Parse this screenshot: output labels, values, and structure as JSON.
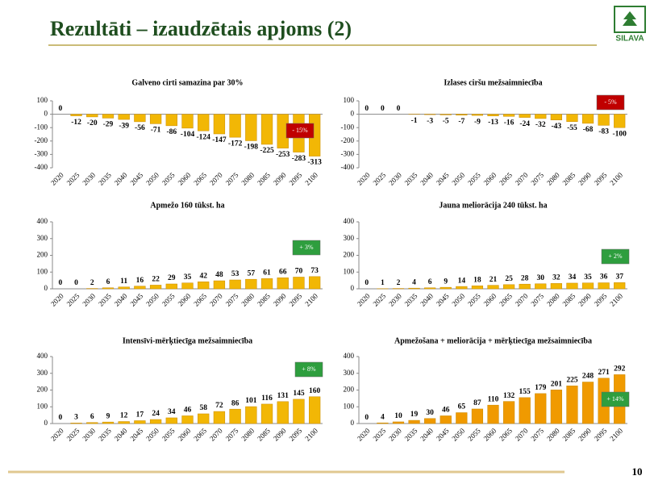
{
  "title": "Rezultāti – izaudzētais apjoms (2)",
  "logo": "SILAVA",
  "page_number": "10",
  "chart_data": [
    {
      "type": "bar",
      "title": "Galveno cirti samazina par 30%",
      "categories": [
        "2020",
        "2025",
        "2030",
        "2035",
        "2040",
        "2045",
        "2050",
        "2055",
        "2060",
        "2065",
        "2070",
        "2075",
        "2080",
        "2085",
        "2090",
        "2095",
        "2100"
      ],
      "values": [
        0,
        -12,
        -20,
        -29,
        -39,
        -56,
        -71,
        -86,
        -104,
        -124,
        -147,
        -172,
        -198,
        -225,
        -253,
        -283,
        -313
      ],
      "color": "#f2b705",
      "ylim": [
        -400,
        100
      ],
      "yticks": [
        -400,
        -300,
        -200,
        -100,
        0,
        100
      ],
      "annotation": "- 15%",
      "annotation_color": "#c00000"
    },
    {
      "type": "bar",
      "title": "Izlases ciršu mežsaimniecība",
      "categories": [
        "2020",
        "2025",
        "2030",
        "2035",
        "2040",
        "2045",
        "2050",
        "2055",
        "2060",
        "2065",
        "2070",
        "2075",
        "2080",
        "2085",
        "2090",
        "2095",
        "2100"
      ],
      "values": [
        0,
        0,
        0,
        -1,
        -3,
        -5,
        -7,
        -9,
        -13,
        -16,
        -24,
        -32,
        -43,
        -55,
        -68,
        -83,
        -100
      ],
      "color": "#f2b705",
      "ylim": [
        -400,
        100
      ],
      "yticks": [
        -400,
        -300,
        -200,
        -100,
        0,
        100
      ],
      "annotation": "- 5%",
      "annotation_color": "#c00000"
    },
    {
      "type": "bar",
      "title": "Apmežo 160 tūkst. ha",
      "categories": [
        "2020",
        "2025",
        "2030",
        "2035",
        "2040",
        "2045",
        "2050",
        "2055",
        "2060",
        "2065",
        "2070",
        "2075",
        "2080",
        "2085",
        "2090",
        "2095",
        "2100"
      ],
      "values": [
        0,
        0,
        2,
        6,
        11,
        16,
        22,
        29,
        35,
        42,
        48,
        53,
        57,
        61,
        66,
        70,
        73
      ],
      "color": "#f2b705",
      "ylim": [
        0,
        400
      ],
      "yticks": [
        0,
        100,
        200,
        300,
        400
      ],
      "annotation": "+ 3%",
      "annotation_color": "#2e9e3e"
    },
    {
      "type": "bar",
      "title": "Jauna meliorācija 240 tūkst. ha",
      "categories": [
        "2020",
        "2025",
        "2030",
        "2035",
        "2040",
        "2045",
        "2050",
        "2055",
        "2060",
        "2065",
        "2070",
        "2075",
        "2080",
        "2085",
        "2090",
        "2095",
        "2100"
      ],
      "values": [
        0,
        1,
        2,
        4,
        6,
        9,
        14,
        18,
        21,
        25,
        28,
        30,
        32,
        34,
        35,
        36,
        37
      ],
      "color": "#f2b705",
      "ylim": [
        0,
        400
      ],
      "yticks": [
        0,
        100,
        200,
        300,
        400
      ],
      "annotation": "+ 2%",
      "annotation_color": "#2e9e3e"
    },
    {
      "type": "bar",
      "title": "Intensīvi-mērķtiecīga mežsaimniecība",
      "categories": [
        "2020",
        "2025",
        "2030",
        "2035",
        "2040",
        "2045",
        "2050",
        "2055",
        "2060",
        "2065",
        "2070",
        "2075",
        "2080",
        "2085",
        "2090",
        "2095",
        "2100"
      ],
      "values": [
        0,
        3,
        6,
        9,
        12,
        17,
        24,
        34,
        46,
        58,
        72,
        86,
        101,
        116,
        131,
        145,
        160
      ],
      "color": "#f2b705",
      "ylim": [
        0,
        400
      ],
      "yticks": [
        0,
        100,
        200,
        300,
        400
      ],
      "annotation": "+ 8%",
      "annotation_color": "#2e9e3e"
    },
    {
      "type": "bar",
      "title": "Apmežošana + meliorācija + mērķtiecīga mežsaimniecība",
      "categories": [
        "2020",
        "2025",
        "2030",
        "2035",
        "2040",
        "2045",
        "2050",
        "2055",
        "2060",
        "2065",
        "2070",
        "2075",
        "2080",
        "2085",
        "2090",
        "2095",
        "2100"
      ],
      "values": [
        0,
        4,
        10,
        19,
        30,
        46,
        65,
        87,
        110,
        132,
        155,
        179,
        201,
        225,
        248,
        271,
        292
      ],
      "color": "#f09a00",
      "ylim": [
        0,
        400
      ],
      "yticks": [
        0,
        100,
        200,
        300,
        400
      ],
      "annotation": "+ 14%",
      "annotation_color": "#2e9e3e"
    }
  ]
}
